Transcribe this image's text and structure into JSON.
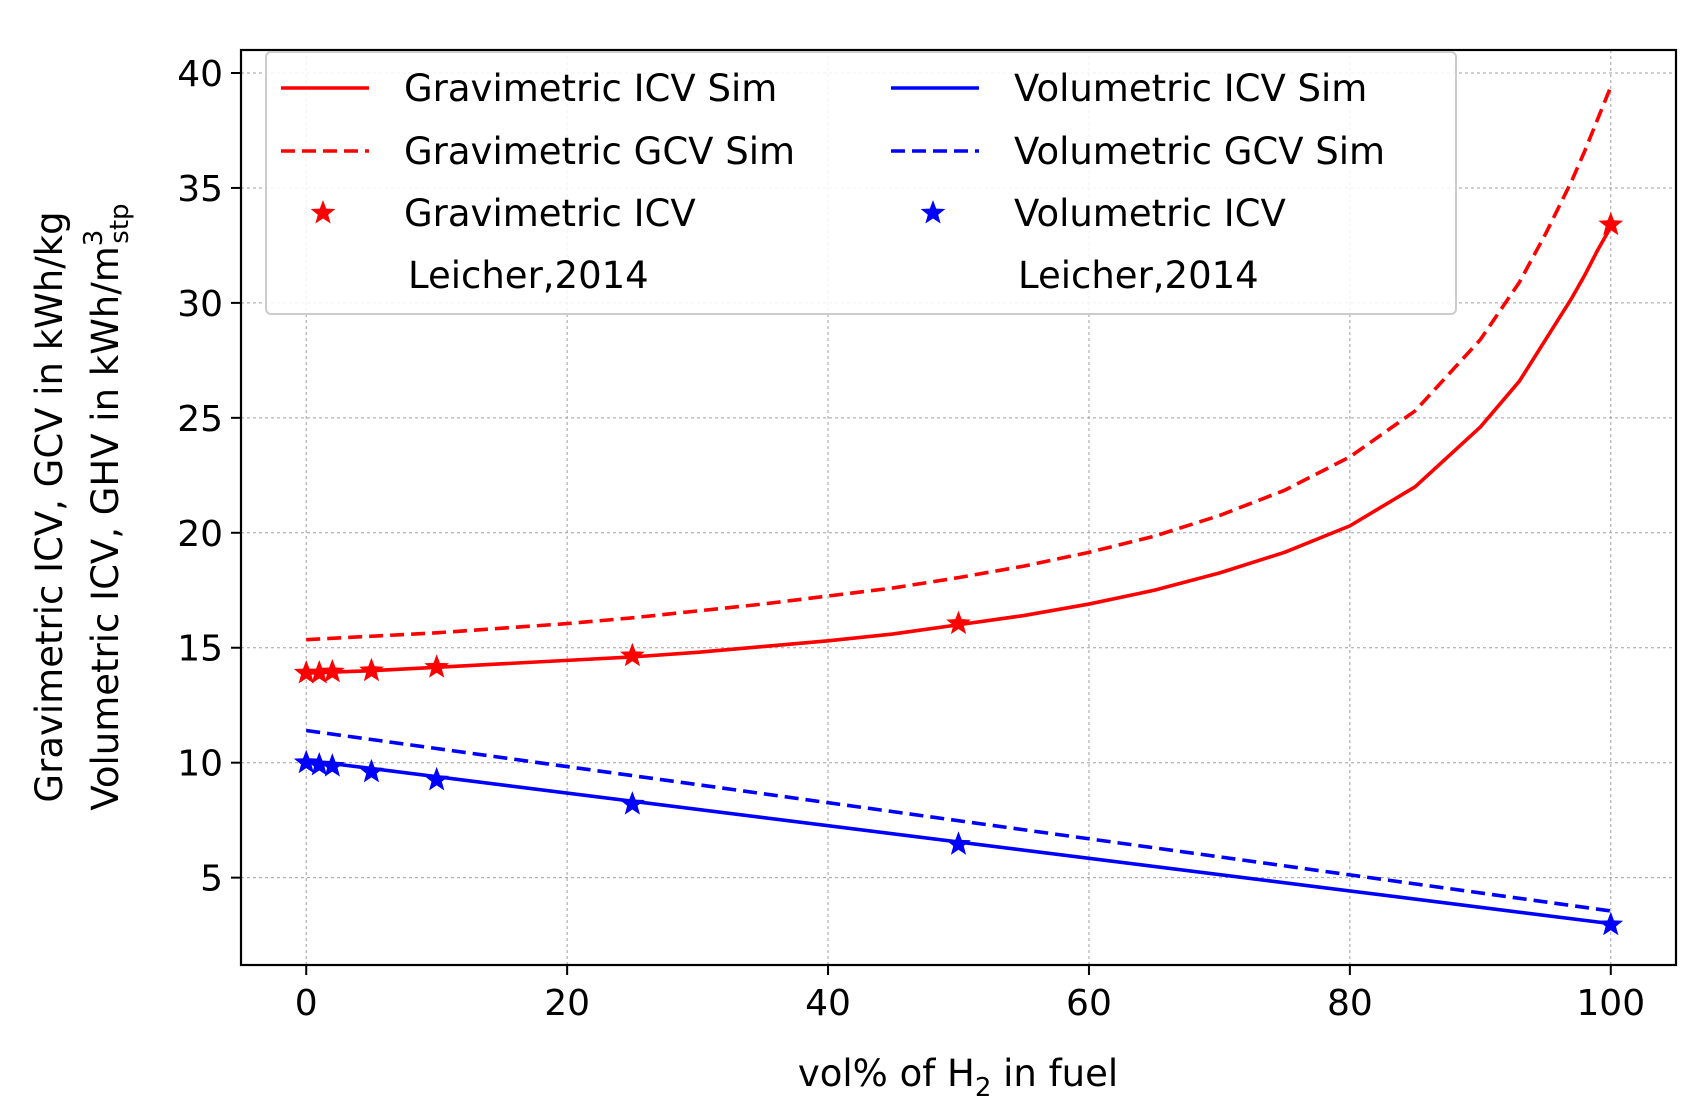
{
  "chart_data": {
    "type": "line",
    "xlabel": {
      "before": "vol% of H",
      "sub": "2",
      "after": " in fuel"
    },
    "ylabel_lines": [
      {
        "text": "Gravimetric ICV, GCV in kWh/kg"
      },
      {
        "text": "Volumetric ICV, GHV in kWh/m",
        "sup": "3",
        "sub": "stp"
      }
    ],
    "xlim": [
      -5,
      105
    ],
    "ylim": [
      1.2,
      41
    ],
    "x_ticks": [
      0,
      20,
      40,
      60,
      80,
      100
    ],
    "y_ticks": [
      5,
      10,
      15,
      20,
      25,
      30,
      35,
      40
    ],
    "grid": true,
    "legend_position": "top-left",
    "legend": [
      {
        "label": "Gravimetric ICV Sim",
        "color": "#ff0000",
        "style": "solid"
      },
      {
        "label": "Volumetric ICV Sim",
        "color": "#0000ff",
        "style": "solid"
      },
      {
        "label": "Gravimetric GCV Sim",
        "color": "#ff0000",
        "style": "dashed"
      },
      {
        "label": "Volumetric GCV Sim",
        "color": "#0000ff",
        "style": "dashed"
      },
      {
        "label": "Gravimetric ICV",
        "label_line2": "Leicher,2014",
        "color": "#ff0000",
        "style": "star"
      },
      {
        "label": "Volumetric ICV",
        "label_line2": "Leicher,2014",
        "color": "#0000ff",
        "style": "star"
      }
    ],
    "series": [
      {
        "name": "Gravimetric ICV Sim",
        "color": "#ff0000",
        "style": "solid",
        "x": [
          0,
          5,
          10,
          15,
          20,
          25,
          30,
          35,
          40,
          45,
          50,
          55,
          60,
          65,
          70,
          75,
          80,
          85,
          90,
          93,
          95,
          97,
          98,
          99,
          100
        ],
        "y": [
          13.9,
          14.0,
          14.15,
          14.3,
          14.45,
          14.6,
          14.8,
          15.05,
          15.3,
          15.6,
          16.0,
          16.4,
          16.9,
          17.5,
          18.25,
          19.15,
          20.3,
          22.0,
          24.6,
          26.6,
          28.4,
          30.2,
          31.2,
          32.3,
          33.3
        ]
      },
      {
        "name": "Gravimetric GCV Sim",
        "color": "#ff0000",
        "style": "dashed",
        "x": [
          0,
          5,
          10,
          15,
          20,
          25,
          30,
          35,
          40,
          45,
          50,
          55,
          60,
          65,
          70,
          75,
          80,
          85,
          90,
          93,
          95,
          97,
          98,
          99,
          100
        ],
        "y": [
          15.35,
          15.5,
          15.65,
          15.85,
          16.05,
          16.3,
          16.6,
          16.9,
          17.25,
          17.6,
          18.05,
          18.55,
          19.15,
          19.85,
          20.75,
          21.85,
          23.3,
          25.3,
          28.4,
          30.9,
          33.0,
          35.3,
          36.6,
          38.0,
          39.4
        ]
      },
      {
        "name": "Volumetric ICV Sim",
        "color": "#0000ff",
        "style": "solid",
        "x": [
          0,
          100
        ],
        "y": [
          10.1,
          3.0
        ]
      },
      {
        "name": "Volumetric GCV Sim",
        "color": "#0000ff",
        "style": "dashed",
        "x": [
          0,
          100
        ],
        "y": [
          11.4,
          3.55
        ]
      },
      {
        "name": "Gravimetric ICV Leicher,2014",
        "color": "#ff0000",
        "style": "star",
        "x": [
          0,
          1,
          2,
          5,
          10,
          25,
          50,
          100
        ],
        "y": [
          13.9,
          13.9,
          13.95,
          14.0,
          14.15,
          14.65,
          16.05,
          33.4
        ]
      },
      {
        "name": "Volumetric ICV Leicher,2014",
        "color": "#0000ff",
        "style": "star",
        "x": [
          0,
          1,
          2,
          5,
          10,
          25,
          50,
          100
        ],
        "y": [
          10.0,
          9.9,
          9.85,
          9.6,
          9.25,
          8.2,
          6.45,
          2.95
        ]
      }
    ]
  }
}
